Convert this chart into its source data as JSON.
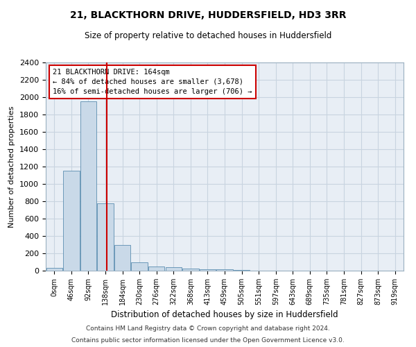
{
  "title": "21, BLACKTHORN DRIVE, HUDDERSFIELD, HD3 3RR",
  "subtitle": "Size of property relative to detached houses in Huddersfield",
  "xlabel": "Distribution of detached houses by size in Huddersfield",
  "ylabel": "Number of detached properties",
  "bar_labels": [
    "0sqm",
    "46sqm",
    "92sqm",
    "138sqm",
    "184sqm",
    "230sqm",
    "276sqm",
    "322sqm",
    "368sqm",
    "413sqm",
    "459sqm",
    "505sqm",
    "551sqm",
    "597sqm",
    "643sqm",
    "689sqm",
    "735sqm",
    "781sqm",
    "827sqm",
    "873sqm",
    "919sqm"
  ],
  "bar_values": [
    30,
    1150,
    1950,
    775,
    300,
    100,
    50,
    42,
    25,
    20,
    15,
    10,
    2,
    0,
    0,
    0,
    0,
    0,
    0,
    0,
    0
  ],
  "bar_color": "#c9d9e8",
  "bar_edgecolor": "#5b8db0",
  "grid_color": "#c8d4e0",
  "background_color": "#e8eef5",
  "vline_color": "#cc0000",
  "annotation_text": "21 BLACKTHORN DRIVE: 164sqm\n← 84% of detached houses are smaller (3,678)\n16% of semi-detached houses are larger (706) →",
  "annotation_box_color": "#ffffff",
  "annotation_box_edgecolor": "#cc0000",
  "ylim": [
    0,
    2400
  ],
  "yticks": [
    0,
    200,
    400,
    600,
    800,
    1000,
    1200,
    1400,
    1600,
    1800,
    2000,
    2200,
    2400
  ],
  "footnote1": "Contains HM Land Registry data © Crown copyright and database right 2024.",
  "footnote2": "Contains public sector information licensed under the Open Government Licence v3.0."
}
